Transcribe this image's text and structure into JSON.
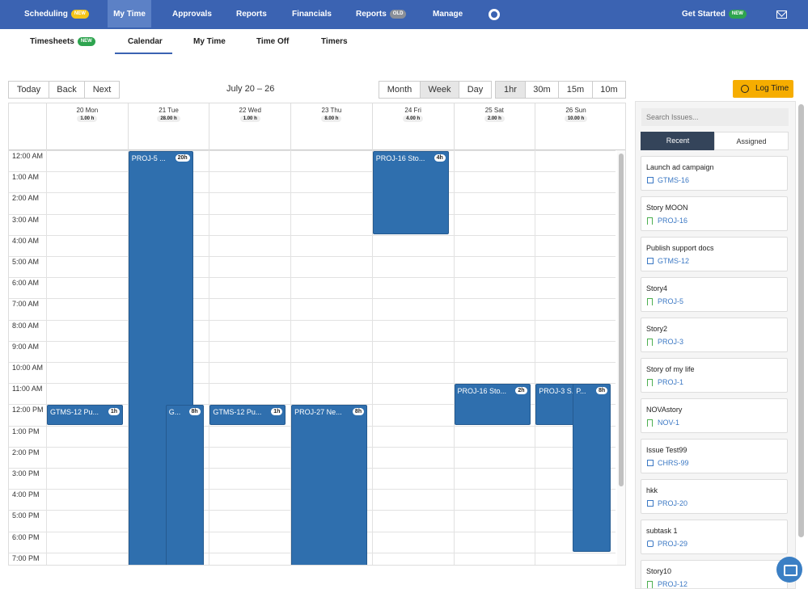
{
  "topnav": {
    "items": [
      {
        "label": "Scheduling",
        "badge": "NEW"
      },
      {
        "label": "My Time"
      },
      {
        "label": "Approvals"
      },
      {
        "label": "Reports"
      },
      {
        "label": "Financials"
      },
      {
        "label": "Reports",
        "badge": "OLD"
      },
      {
        "label": "Manage"
      }
    ],
    "get_started": "Get Started",
    "get_started_badge": "NEW",
    "settings_icon": "gear-icon",
    "mail_icon": "mail-icon"
  },
  "subnav": {
    "tabs": [
      {
        "label": "Timesheets",
        "badge": "NEW"
      },
      {
        "label": "Calendar"
      },
      {
        "label": "My Time"
      },
      {
        "label": "Time Off"
      },
      {
        "label": "Timers"
      }
    ],
    "active": "Calendar"
  },
  "toolbar": {
    "today": "Today",
    "back": "Back",
    "next": "Next",
    "range": "July 20 – 26",
    "views": [
      "Month",
      "Week",
      "Day"
    ],
    "active_view": "Week",
    "intervals": [
      "1hr",
      "30m",
      "15m",
      "10m"
    ],
    "active_interval": "1hr",
    "log_time": "Log Time"
  },
  "calendar": {
    "days": [
      {
        "name": "20 Mon",
        "total": "1.00 h"
      },
      {
        "name": "21 Tue",
        "total": "28.00 h"
      },
      {
        "name": "22 Wed",
        "total": "1.00 h"
      },
      {
        "name": "23 Thu",
        "total": "8.00 h"
      },
      {
        "name": "24 Fri",
        "total": "4.00 h"
      },
      {
        "name": "25 Sat",
        "total": "2.00 h"
      },
      {
        "name": "26 Sun",
        "total": "10.00 h"
      }
    ],
    "hours": [
      "12:00 AM",
      "1:00 AM",
      "2:00 AM",
      "3:00 AM",
      "4:00 AM",
      "5:00 AM",
      "6:00 AM",
      "7:00 AM",
      "8:00 AM",
      "9:00 AM",
      "10:00 AM",
      "11:00 AM",
      "12:00 PM",
      "1:00 PM",
      "2:00 PM",
      "3:00 PM",
      "4:00 PM",
      "5:00 PM",
      "6:00 PM",
      "7:00 PM"
    ],
    "events": [
      {
        "title": "PROJ-5 ...",
        "hours": "20h",
        "day": 1,
        "start": 0,
        "duration": 20
      },
      {
        "title": "PROJ-16 Sto...",
        "hours": "4h",
        "day": 4,
        "start": 0,
        "duration": 4
      },
      {
        "title": "PROJ-16 Sto...",
        "hours": "2h",
        "day": 5,
        "start": 11,
        "duration": 2
      },
      {
        "title": "PROJ-3 S...",
        "hours": "",
        "day": 6,
        "start": 11,
        "duration": 2
      },
      {
        "title": "P...",
        "hours": "8h",
        "day": 6,
        "start": 11,
        "duration": 8
      },
      {
        "title": "GTMS-12 Pu...",
        "hours": "1h",
        "day": 0,
        "start": 12,
        "duration": 1
      },
      {
        "title": "G...",
        "hours": "8h",
        "day": 1,
        "start": 12,
        "duration": 8
      },
      {
        "title": "GTMS-12 Pu...",
        "hours": "1h",
        "day": 2,
        "start": 12,
        "duration": 1
      },
      {
        "title": "PROJ-27 Ne...",
        "hours": "8h",
        "day": 3,
        "start": 12,
        "duration": 8
      }
    ]
  },
  "panel": {
    "search_placeholder": "Search Issues...",
    "tabs": [
      "Recent",
      "Assigned"
    ],
    "active_tab": "Recent",
    "issues": [
      {
        "title": "Launch ad campaign",
        "key": "GTMS-16",
        "icon": "check-icon"
      },
      {
        "title": "Story MOON",
        "key": "PROJ-16",
        "icon": "bookmark-icon"
      },
      {
        "title": "Publish support docs",
        "key": "GTMS-12",
        "icon": "check-icon"
      },
      {
        "title": "Story4",
        "key": "PROJ-5",
        "icon": "bookmark-icon"
      },
      {
        "title": "Story2",
        "key": "PROJ-3",
        "icon": "bookmark-icon"
      },
      {
        "title": "Story of my life",
        "key": "PROJ-1",
        "icon": "bookmark-icon"
      },
      {
        "title": "NOVAstory",
        "key": "NOV-1",
        "icon": "bookmark-icon"
      },
      {
        "title": "Issue Test99",
        "key": "CHRS-99",
        "icon": "check-icon"
      },
      {
        "title": "hkk",
        "key": "PROJ-20",
        "icon": "check-icon"
      },
      {
        "title": "subtask 1",
        "key": "PROJ-29",
        "icon": "subtask-icon"
      },
      {
        "title": "Story10",
        "key": "PROJ-12",
        "icon": "bookmark-icon"
      }
    ]
  },
  "chat_icon": "chat-icon"
}
